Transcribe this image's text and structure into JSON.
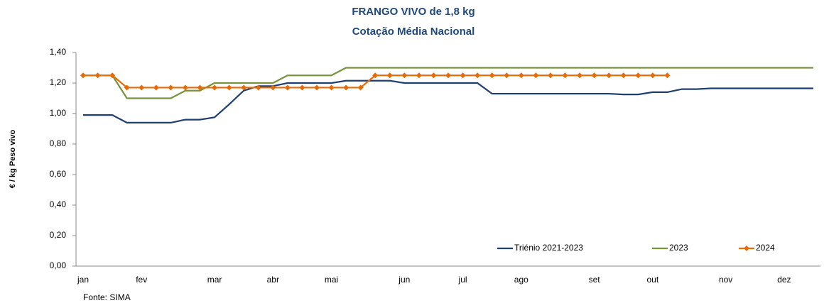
{
  "chart_data": {
    "type": "line",
    "title": "FRANGO VIVO de 1,8 kg",
    "subtitle": "Cotação Média Nacional",
    "y_label": "€ / kg Peso vivo",
    "source": "Fonte: SIMA",
    "categories": [
      "jan",
      null,
      null,
      null,
      "fev",
      null,
      null,
      null,
      null,
      "mar",
      null,
      null,
      null,
      "abr",
      null,
      null,
      null,
      "mai",
      null,
      null,
      null,
      null,
      "jun",
      null,
      null,
      null,
      "jul",
      null,
      null,
      null,
      "ago",
      null,
      null,
      null,
      null,
      "set",
      null,
      null,
      null,
      "out",
      null,
      null,
      null,
      null,
      "nov",
      null,
      null,
      null,
      "dez",
      null,
      null
    ],
    "series": [
      {
        "name": "Triénio 2021-2023",
        "color": "#1f3f73",
        "marker": null,
        "values": [
          0.99,
          0.99,
          0.99,
          0.94,
          0.94,
          0.94,
          0.94,
          0.96,
          0.96,
          0.975,
          1.06,
          1.15,
          1.18,
          1.18,
          1.2,
          1.2,
          1.2,
          1.2,
          1.215,
          1.215,
          1.215,
          1.215,
          1.2,
          1.2,
          1.2,
          1.2,
          1.2,
          1.2,
          1.13,
          1.13,
          1.13,
          1.13,
          1.13,
          1.13,
          1.13,
          1.13,
          1.13,
          1.125,
          1.125,
          1.14,
          1.14,
          1.16,
          1.16,
          1.165,
          1.165,
          1.165,
          1.165,
          1.165,
          1.165,
          1.165,
          1.165
        ]
      },
      {
        "name": "2023",
        "color": "#77933c",
        "marker": null,
        "values": [
          1.25,
          1.25,
          1.25,
          1.1,
          1.1,
          1.1,
          1.1,
          1.15,
          1.15,
          1.2,
          1.2,
          1.2,
          1.2,
          1.2,
          1.25,
          1.25,
          1.25,
          1.25,
          1.3,
          1.3,
          1.3,
          1.3,
          1.3,
          1.3,
          1.3,
          1.3,
          1.3,
          1.3,
          1.3,
          1.3,
          1.3,
          1.3,
          1.3,
          1.3,
          1.3,
          1.3,
          1.3,
          1.3,
          1.3,
          1.3,
          1.3,
          1.3,
          1.3,
          1.3,
          1.3,
          1.3,
          1.3,
          1.3,
          1.3,
          1.3,
          1.3
        ]
      },
      {
        "name": "2024",
        "color": "#e36c09",
        "marker": "diamond",
        "values": [
          1.25,
          1.25,
          1.25,
          1.17,
          1.17,
          1.17,
          1.17,
          1.17,
          1.17,
          1.17,
          1.17,
          1.17,
          1.17,
          1.17,
          1.17,
          1.17,
          1.17,
          1.17,
          1.17,
          1.17,
          1.25,
          1.25,
          1.25,
          1.25,
          1.25,
          1.25,
          1.25,
          1.25,
          1.25,
          1.25,
          1.25,
          1.25,
          1.25,
          1.25,
          1.25,
          1.25,
          1.25,
          1.25,
          1.25,
          1.25,
          1.25,
          null,
          null,
          null,
          null,
          null,
          null,
          null,
          null,
          null,
          null
        ]
      }
    ],
    "ylim": [
      0,
      1.4
    ],
    "yticks": [
      {
        "value": 0,
        "label": "0,00"
      },
      {
        "value": 0.2,
        "label": "0,20"
      },
      {
        "value": 0.4,
        "label": "0,40"
      },
      {
        "value": 0.6,
        "label": "0,60"
      },
      {
        "value": 0.8,
        "label": "0,80"
      },
      {
        "value": 1,
        "label": "1,00"
      },
      {
        "value": 1.2,
        "label": "1,20"
      },
      {
        "value": 1.4,
        "label": "1,40"
      }
    ],
    "grid": false,
    "legend": "bottom-right"
  }
}
